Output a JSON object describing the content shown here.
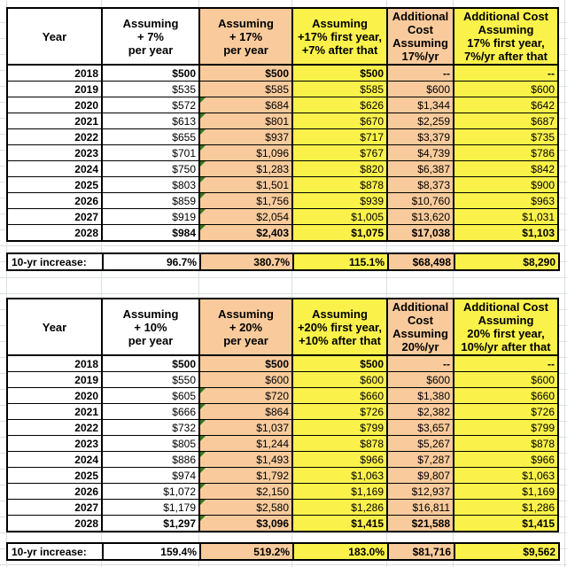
{
  "colors": {
    "orange_fill": "#f9cb9c",
    "yellow_fill": "#faf24a",
    "note_green": "#38761d",
    "border_black": "#000000",
    "gridline_gray": "#dcdfe3"
  },
  "tables": [
    {
      "id": "projection-7-vs-17",
      "headers": [
        "Year",
        "Assuming\n+ 7%\nper year",
        "Assuming\n+ 17%\nper year",
        "Assuming\n+17% first year,\n+7% after that",
        "Additional\nCost\nAssuming\n17%/yr",
        "Additional Cost\nAssuming\n17% first year,\n7%/yr after that"
      ],
      "rows": [
        [
          "2018",
          "$500",
          "$500",
          "$500",
          "--",
          "--"
        ],
        [
          "2019",
          "$535",
          "$585",
          "$585",
          "$600",
          "$600"
        ],
        [
          "2020",
          "$572",
          "$684",
          "$626",
          "$1,344",
          "$642"
        ],
        [
          "2021",
          "$613",
          "$801",
          "$670",
          "$2,259",
          "$687"
        ],
        [
          "2022",
          "$655",
          "$937",
          "$717",
          "$3,379",
          "$735"
        ],
        [
          "2023",
          "$701",
          "$1,096",
          "$767",
          "$4,739",
          "$786"
        ],
        [
          "2024",
          "$750",
          "$1,283",
          "$820",
          "$6,387",
          "$842"
        ],
        [
          "2025",
          "$803",
          "$1,501",
          "$878",
          "$8,373",
          "$900"
        ],
        [
          "2026",
          "$859",
          "$1,756",
          "$939",
          "$10,760",
          "$963"
        ],
        [
          "2027",
          "$919",
          "$2,054",
          "$1,005",
          "$13,620",
          "$1,031"
        ],
        [
          "2028",
          "$984",
          "$2,403",
          "$1,075",
          "$17,038",
          "$1,103"
        ]
      ],
      "summary": [
        "10-yr increase:",
        "96.7%",
        "380.7%",
        "115.1%",
        "$68,498",
        "$8,290"
      ]
    },
    {
      "id": "projection-10-vs-20",
      "headers": [
        "Year",
        "Assuming\n+ 10%\nper year",
        "Assuming\n+ 20%\nper year",
        "Assuming\n+20% first year,\n+10% after that",
        "Additional\nCost\nAssuming\n20%/yr",
        "Additional Cost\nAssuming\n20% first year,\n10%/yr after that"
      ],
      "rows": [
        [
          "2018",
          "$500",
          "$500",
          "$500",
          "--",
          "--"
        ],
        [
          "2019",
          "$550",
          "$600",
          "$600",
          "$600",
          "$600"
        ],
        [
          "2020",
          "$605",
          "$720",
          "$660",
          "$1,380",
          "$660"
        ],
        [
          "2021",
          "$666",
          "$864",
          "$726",
          "$2,382",
          "$726"
        ],
        [
          "2022",
          "$732",
          "$1,037",
          "$799",
          "$3,657",
          "$799"
        ],
        [
          "2023",
          "$805",
          "$1,244",
          "$878",
          "$5,267",
          "$878"
        ],
        [
          "2024",
          "$886",
          "$1,493",
          "$966",
          "$7,287",
          "$966"
        ],
        [
          "2025",
          "$974",
          "$1,792",
          "$1,063",
          "$9,807",
          "$1,063"
        ],
        [
          "2026",
          "$1,072",
          "$2,150",
          "$1,169",
          "$12,937",
          "$1,169"
        ],
        [
          "2027",
          "$1,179",
          "$2,580",
          "$1,286",
          "$16,811",
          "$1,286"
        ],
        [
          "2028",
          "$1,297",
          "$3,096",
          "$1,415",
          "$21,588",
          "$1,415"
        ]
      ],
      "summary": [
        "10-yr increase:",
        "159.4%",
        "519.2%",
        "183.0%",
        "$81,716",
        "$9,562"
      ]
    }
  ]
}
